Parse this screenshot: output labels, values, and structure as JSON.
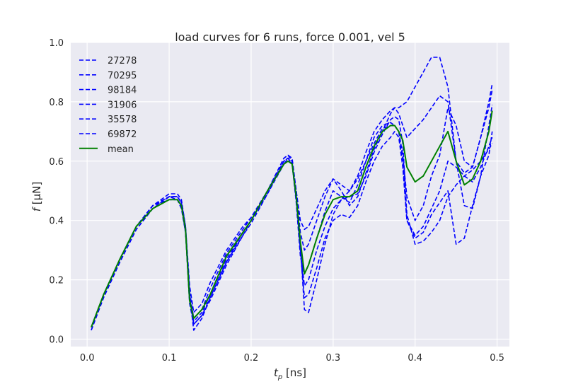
{
  "chart_data": {
    "type": "line",
    "title": "load curves for 6 runs, force 0.001, vel 5",
    "xlabel": "t_p [ns]",
    "ylabel": "f [μN]",
    "xlim": [
      -0.02,
      0.515
    ],
    "ylim": [
      -0.025,
      1.0
    ],
    "xticks": [
      0.0,
      0.1,
      0.2,
      0.3,
      0.4,
      0.5
    ],
    "xtick_labels": [
      "0.0",
      "0.1",
      "0.2",
      "0.3",
      "0.4",
      "0.5"
    ],
    "yticks": [
      0.0,
      0.2,
      0.4,
      0.6,
      0.8,
      1.0
    ],
    "ytick_labels": [
      "0.0",
      "0.2",
      "0.4",
      "0.6",
      "0.8",
      "1.0"
    ],
    "grid": true,
    "legend_position": "top-left",
    "colors": {
      "runs": "#0000ff",
      "mean": "#008000",
      "background": "#eaeaf2",
      "grid": "#ffffff"
    },
    "series": [
      {
        "name": "27278",
        "style": "dashed",
        "x": [
          0.005,
          0.02,
          0.04,
          0.06,
          0.08,
          0.1,
          0.11,
          0.115,
          0.12,
          0.125,
          0.13,
          0.14,
          0.15,
          0.17,
          0.19,
          0.2,
          0.22,
          0.24,
          0.245,
          0.25,
          0.255,
          0.26,
          0.265,
          0.27,
          0.28,
          0.29,
          0.3,
          0.31,
          0.32,
          0.33,
          0.34,
          0.35,
          0.36,
          0.37,
          0.375,
          0.38,
          0.385,
          0.39,
          0.4,
          0.41,
          0.42,
          0.43,
          0.44,
          0.45,
          0.46,
          0.47,
          0.48,
          0.49,
          0.494
        ],
        "y": [
          0.03,
          0.14,
          0.26,
          0.37,
          0.44,
          0.48,
          0.48,
          0.46,
          0.38,
          0.15,
          0.03,
          0.07,
          0.14,
          0.26,
          0.36,
          0.4,
          0.5,
          0.6,
          0.61,
          0.59,
          0.47,
          0.32,
          0.1,
          0.09,
          0.2,
          0.32,
          0.42,
          0.47,
          0.48,
          0.49,
          0.55,
          0.63,
          0.69,
          0.74,
          0.75,
          0.74,
          0.66,
          0.42,
          0.32,
          0.33,
          0.36,
          0.4,
          0.48,
          0.52,
          0.55,
          0.57,
          0.6,
          0.64,
          0.66
        ]
      },
      {
        "name": "70295",
        "style": "dashed",
        "x": [
          0.005,
          0.02,
          0.04,
          0.06,
          0.08,
          0.1,
          0.11,
          0.115,
          0.12,
          0.125,
          0.13,
          0.14,
          0.15,
          0.17,
          0.19,
          0.2,
          0.22,
          0.24,
          0.245,
          0.25,
          0.255,
          0.26,
          0.265,
          0.27,
          0.28,
          0.29,
          0.3,
          0.31,
          0.32,
          0.33,
          0.34,
          0.35,
          0.36,
          0.37,
          0.375,
          0.38,
          0.385,
          0.39,
          0.4,
          0.41,
          0.42,
          0.43,
          0.44,
          0.45,
          0.46,
          0.47,
          0.48,
          0.49,
          0.494
        ],
        "y": [
          0.04,
          0.15,
          0.27,
          0.38,
          0.45,
          0.49,
          0.49,
          0.47,
          0.38,
          0.18,
          0.09,
          0.12,
          0.19,
          0.3,
          0.38,
          0.41,
          0.5,
          0.61,
          0.62,
          0.6,
          0.5,
          0.4,
          0.37,
          0.38,
          0.44,
          0.5,
          0.54,
          0.52,
          0.5,
          0.55,
          0.63,
          0.7,
          0.74,
          0.77,
          0.78,
          0.76,
          0.72,
          0.68,
          0.71,
          0.74,
          0.78,
          0.82,
          0.8,
          0.6,
          0.45,
          0.44,
          0.55,
          0.72,
          0.79
        ]
      },
      {
        "name": "98184",
        "style": "dashed",
        "x": [
          0.005,
          0.02,
          0.04,
          0.06,
          0.08,
          0.1,
          0.11,
          0.115,
          0.12,
          0.125,
          0.13,
          0.14,
          0.15,
          0.17,
          0.19,
          0.2,
          0.22,
          0.24,
          0.245,
          0.25,
          0.255,
          0.26,
          0.265,
          0.27,
          0.28,
          0.29,
          0.3,
          0.31,
          0.32,
          0.33,
          0.34,
          0.35,
          0.36,
          0.37,
          0.375,
          0.38,
          0.385,
          0.39,
          0.4,
          0.41,
          0.42,
          0.43,
          0.44,
          0.45,
          0.46,
          0.47,
          0.48,
          0.49,
          0.494
        ],
        "y": [
          0.04,
          0.15,
          0.27,
          0.38,
          0.45,
          0.48,
          0.48,
          0.46,
          0.37,
          0.14,
          0.06,
          0.09,
          0.15,
          0.27,
          0.36,
          0.4,
          0.49,
          0.6,
          0.61,
          0.6,
          0.48,
          0.3,
          0.18,
          0.2,
          0.3,
          0.38,
          0.44,
          0.47,
          0.5,
          0.54,
          0.6,
          0.66,
          0.71,
          0.72,
          0.72,
          0.7,
          0.6,
          0.4,
          0.35,
          0.38,
          0.44,
          0.5,
          0.6,
          0.58,
          0.55,
          0.53,
          0.58,
          0.65,
          0.68
        ]
      },
      {
        "name": "31906",
        "style": "dashed",
        "x": [
          0.005,
          0.02,
          0.04,
          0.06,
          0.08,
          0.1,
          0.11,
          0.115,
          0.12,
          0.125,
          0.13,
          0.14,
          0.15,
          0.17,
          0.19,
          0.2,
          0.22,
          0.24,
          0.245,
          0.25,
          0.255,
          0.26,
          0.265,
          0.27,
          0.28,
          0.29,
          0.3,
          0.31,
          0.32,
          0.33,
          0.34,
          0.35,
          0.36,
          0.37,
          0.375,
          0.38,
          0.385,
          0.39,
          0.4,
          0.41,
          0.42,
          0.43,
          0.44,
          0.45,
          0.46,
          0.47,
          0.48,
          0.49,
          0.494
        ],
        "y": [
          0.04,
          0.15,
          0.27,
          0.38,
          0.45,
          0.48,
          0.48,
          0.46,
          0.38,
          0.16,
          0.07,
          0.1,
          0.17,
          0.29,
          0.37,
          0.41,
          0.5,
          0.61,
          0.62,
          0.61,
          0.5,
          0.36,
          0.3,
          0.32,
          0.4,
          0.48,
          0.54,
          0.5,
          0.45,
          0.48,
          0.56,
          0.64,
          0.7,
          0.76,
          0.78,
          0.78,
          0.79,
          0.8,
          0.85,
          0.9,
          0.95,
          0.95,
          0.85,
          0.6,
          0.56,
          0.58,
          0.68,
          0.8,
          0.86
        ]
      },
      {
        "name": "35578",
        "style": "dashed",
        "x": [
          0.005,
          0.02,
          0.04,
          0.06,
          0.08,
          0.1,
          0.11,
          0.115,
          0.12,
          0.125,
          0.13,
          0.14,
          0.15,
          0.17,
          0.19,
          0.2,
          0.22,
          0.24,
          0.245,
          0.25,
          0.255,
          0.26,
          0.265,
          0.27,
          0.28,
          0.29,
          0.3,
          0.31,
          0.32,
          0.33,
          0.34,
          0.35,
          0.36,
          0.37,
          0.375,
          0.38,
          0.385,
          0.39,
          0.4,
          0.41,
          0.42,
          0.43,
          0.44,
          0.45,
          0.46,
          0.47,
          0.48,
          0.49,
          0.494
        ],
        "y": [
          0.04,
          0.15,
          0.27,
          0.38,
          0.45,
          0.47,
          0.47,
          0.45,
          0.36,
          0.12,
          0.05,
          0.08,
          0.14,
          0.26,
          0.35,
          0.39,
          0.49,
          0.59,
          0.6,
          0.59,
          0.47,
          0.3,
          0.14,
          0.15,
          0.24,
          0.34,
          0.4,
          0.42,
          0.41,
          0.45,
          0.53,
          0.6,
          0.65,
          0.68,
          0.7,
          0.68,
          0.58,
          0.4,
          0.34,
          0.36,
          0.42,
          0.46,
          0.5,
          0.32,
          0.34,
          0.45,
          0.55,
          0.62,
          0.7
        ]
      },
      {
        "name": "69872",
        "style": "dashed",
        "x": [
          0.005,
          0.02,
          0.04,
          0.06,
          0.08,
          0.1,
          0.11,
          0.115,
          0.12,
          0.125,
          0.13,
          0.14,
          0.15,
          0.17,
          0.19,
          0.2,
          0.22,
          0.24,
          0.245,
          0.25,
          0.255,
          0.26,
          0.265,
          0.27,
          0.28,
          0.29,
          0.3,
          0.31,
          0.32,
          0.33,
          0.34,
          0.35,
          0.36,
          0.37,
          0.375,
          0.38,
          0.385,
          0.39,
          0.4,
          0.41,
          0.42,
          0.43,
          0.44,
          0.45,
          0.46,
          0.47,
          0.48,
          0.49,
          0.494
        ],
        "y": [
          0.03,
          0.14,
          0.26,
          0.37,
          0.44,
          0.48,
          0.47,
          0.44,
          0.36,
          0.14,
          0.05,
          0.08,
          0.13,
          0.25,
          0.35,
          0.4,
          0.5,
          0.59,
          0.61,
          0.59,
          0.46,
          0.28,
          0.22,
          0.25,
          0.34,
          0.43,
          0.5,
          0.48,
          0.46,
          0.52,
          0.6,
          0.68,
          0.72,
          0.73,
          0.72,
          0.7,
          0.62,
          0.48,
          0.4,
          0.45,
          0.55,
          0.62,
          0.78,
          0.72,
          0.6,
          0.58,
          0.68,
          0.78,
          0.84
        ]
      },
      {
        "name": "mean",
        "style": "solid",
        "x": [
          0.005,
          0.02,
          0.04,
          0.06,
          0.08,
          0.1,
          0.11,
          0.115,
          0.12,
          0.125,
          0.13,
          0.14,
          0.15,
          0.17,
          0.19,
          0.2,
          0.22,
          0.24,
          0.245,
          0.25,
          0.255,
          0.26,
          0.265,
          0.27,
          0.28,
          0.29,
          0.3,
          0.31,
          0.32,
          0.33,
          0.34,
          0.35,
          0.36,
          0.37,
          0.375,
          0.38,
          0.385,
          0.39,
          0.4,
          0.41,
          0.42,
          0.43,
          0.44,
          0.45,
          0.46,
          0.47,
          0.48,
          0.49,
          0.494
        ],
        "y": [
          0.04,
          0.15,
          0.27,
          0.38,
          0.44,
          0.47,
          0.47,
          0.45,
          0.37,
          0.13,
          0.07,
          0.1,
          0.15,
          0.28,
          0.36,
          0.4,
          0.5,
          0.59,
          0.6,
          0.59,
          0.48,
          0.33,
          0.22,
          0.25,
          0.34,
          0.42,
          0.47,
          0.48,
          0.48,
          0.5,
          0.58,
          0.65,
          0.7,
          0.72,
          0.72,
          0.7,
          0.67,
          0.58,
          0.53,
          0.55,
          0.6,
          0.65,
          0.7,
          0.6,
          0.52,
          0.54,
          0.6,
          0.7,
          0.77
        ]
      }
    ]
  }
}
